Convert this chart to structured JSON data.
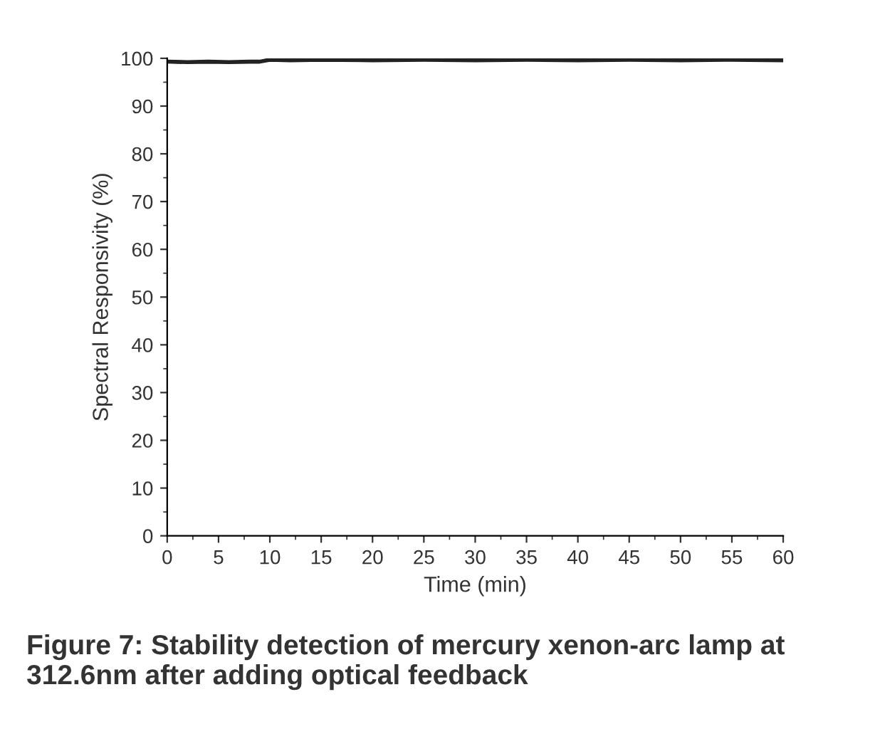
{
  "chart_data": {
    "type": "line",
    "xlabel": "Time (min)",
    "ylabel": "Spectral Responsivity (%)",
    "x": [
      0,
      2,
      4,
      6,
      8,
      9,
      10,
      12,
      15,
      20,
      25,
      30,
      35,
      40,
      45,
      50,
      55,
      60
    ],
    "series": [
      {
        "color": "#222222",
        "values": [
          99.3,
          99.2,
          99.3,
          99.2,
          99.3,
          99.3,
          99.7,
          99.6,
          99.7,
          99.6,
          99.7,
          99.6,
          99.7,
          99.6,
          99.7,
          99.6,
          99.7,
          99.6
        ]
      }
    ],
    "xlim": [
      0,
      60
    ],
    "ylim": [
      0,
      100
    ],
    "xticks": [
      0,
      5,
      10,
      15,
      20,
      25,
      30,
      35,
      40,
      45,
      50,
      55,
      60
    ],
    "yticks": [
      0,
      10,
      20,
      30,
      40,
      50,
      60,
      70,
      80,
      90,
      100
    ],
    "grid": false,
    "legend": false,
    "marker": "none",
    "line_style": "solid",
    "annotations": [
      "Figure 7: Stability detection of mercury xenon-arc lamp at 312.6nm after adding optical feedback"
    ]
  }
}
